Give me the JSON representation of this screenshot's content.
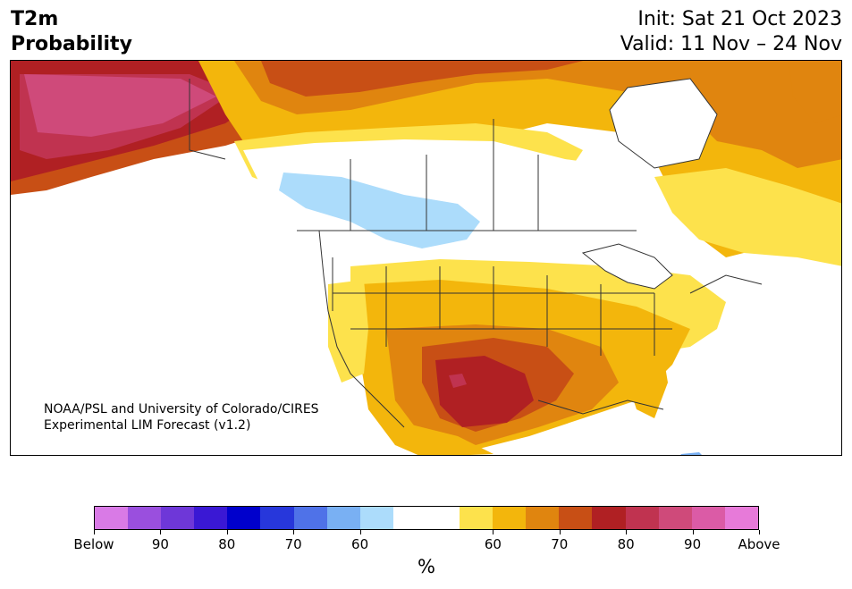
{
  "header": {
    "title_line1": "T2m",
    "title_line2": "Probability",
    "init": "Init: Sat 21 Oct 2023",
    "valid": "Valid: 11 Nov – 24 Nov"
  },
  "credit": {
    "line1": "NOAA/PSL and University of Colorado/CIRES",
    "line2": "Experimental LIM Forecast (v1.2)"
  },
  "colorbar": {
    "unit": "%",
    "colors": [
      "#d97ae6",
      "#9a4fde",
      "#6e37d8",
      "#3a18d4",
      "#0000cc",
      "#2737db",
      "#4f72e8",
      "#79b0f3",
      "#acdcfb",
      "#ffffff",
      "#ffffff",
      "#fde24c",
      "#f3b60c",
      "#e0850f",
      "#c84f15",
      "#b02023",
      "#c03350",
      "#cf4a7a",
      "#db5ba6",
      "#e77ad9"
    ],
    "ticks": [
      "Below",
      "90",
      "80",
      "70",
      "60",
      "60",
      "70",
      "80",
      "90",
      "Above"
    ]
  }
}
